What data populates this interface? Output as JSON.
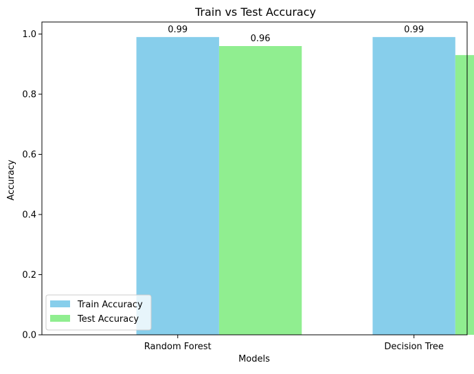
{
  "chart_data": {
    "type": "bar",
    "title": "Train vs Test Accuracy",
    "xlabel": "Models",
    "ylabel": "Accuracy",
    "categories": [
      "Random Forest",
      "Decision Tree"
    ],
    "series": [
      {
        "name": "Train Accuracy",
        "values": [
          0.99,
          0.99
        ],
        "color": "#87ceeb"
      },
      {
        "name": "Test Accuracy",
        "values": [
          0.96,
          0.93
        ],
        "color": "#90ee90"
      }
    ],
    "data_labels": [
      [
        "0.99",
        "0.99"
      ],
      [
        "0.96",
        "0.93"
      ]
    ],
    "ylim": [
      0,
      1.04
    ],
    "yticks": [
      0.0,
      0.2,
      0.4,
      0.6,
      0.8,
      1.0
    ],
    "ytick_labels": [
      "0.0",
      "0.2",
      "0.4",
      "0.6",
      "0.8",
      "1.0"
    ],
    "grid": false,
    "legend_position": "lower-left"
  }
}
